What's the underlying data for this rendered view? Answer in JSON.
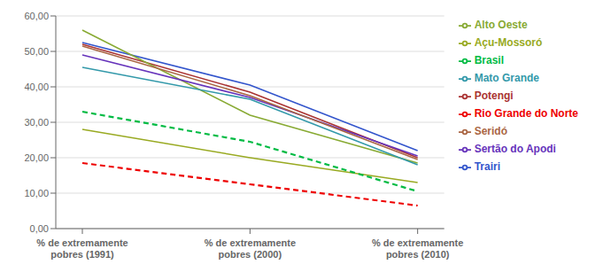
{
  "chart_data": {
    "type": "line",
    "categories": [
      "% de extremamente\npobres (1991)",
      "% de extremamente\npobres (2000)",
      "% de extremamente\npobres (2010)"
    ],
    "series": [
      {
        "name": "Trairi",
        "values": [
          52.5,
          40.5,
          22.0
        ],
        "color": "#3355CC",
        "line_style": "solid"
      },
      {
        "name": "Potengi",
        "values": [
          52.0,
          38.5,
          20.0
        ],
        "color": "#AA3333",
        "line_style": "solid"
      },
      {
        "name": "Alto Oeste",
        "values": [
          56.0,
          32.0,
          18.5
        ],
        "color": "#88AA33",
        "line_style": "solid"
      },
      {
        "name": "Sertão do Apodi",
        "values": [
          49.0,
          37.0,
          20.5
        ],
        "color": "#6633BB",
        "line_style": "solid"
      },
      {
        "name": "Mato Grande",
        "values": [
          45.5,
          36.5,
          18.0
        ],
        "color": "#3399AA",
        "line_style": "solid"
      },
      {
        "name": "Seridó",
        "values": [
          51.5,
          37.5,
          19.5
        ],
        "color": "#AA6644",
        "line_style": "solid"
      },
      {
        "name": "Açu-Mossoró",
        "values": [
          28.0,
          20.0,
          13.0
        ],
        "color": "#99AA22",
        "line_style": "solid"
      },
      {
        "name": "Rio Grande do Norte",
        "values": [
          18.5,
          12.5,
          6.5
        ],
        "color": "#EE0000",
        "line_style": "dashed"
      },
      {
        "name": "Brasil",
        "values": [
          33.0,
          24.5,
          10.5
        ],
        "color": "#00BB44",
        "line_style": "dashed"
      }
    ],
    "ylim": [
      0,
      60
    ],
    "yticks": [
      {
        "value": 0,
        "label": "0,00"
      },
      {
        "value": 10,
        "label": "10,00"
      },
      {
        "value": 20,
        "label": "20,00"
      },
      {
        "value": 30,
        "label": "30,00"
      },
      {
        "value": 40,
        "label": "40,00"
      },
      {
        "value": 50,
        "label": "50,00"
      },
      {
        "value": 60,
        "label": "60,00"
      }
    ],
    "grid": true,
    "legend": "right"
  }
}
